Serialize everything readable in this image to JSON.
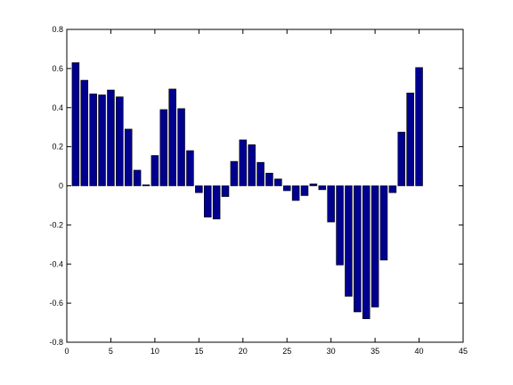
{
  "chart_data": {
    "type": "bar",
    "x": [
      1,
      2,
      3,
      4,
      5,
      6,
      7,
      8,
      9,
      10,
      11,
      12,
      13,
      14,
      15,
      16,
      17,
      18,
      19,
      20,
      21,
      22,
      23,
      24,
      25,
      26,
      27,
      28,
      29,
      30,
      31,
      32,
      33,
      34,
      35,
      36,
      37,
      38,
      39,
      40
    ],
    "values": [
      0.63,
      0.54,
      0.47,
      0.465,
      0.49,
      0.455,
      0.29,
      0.08,
      0.005,
      0.155,
      0.39,
      0.495,
      0.395,
      0.18,
      -0.035,
      -0.16,
      -0.17,
      -0.055,
      0.125,
      0.235,
      0.21,
      0.12,
      0.065,
      0.035,
      -0.025,
      -0.075,
      -0.05,
      0.01,
      -0.02,
      -0.185,
      -0.405,
      -0.565,
      -0.645,
      -0.68,
      -0.62,
      -0.38,
      -0.035,
      0.275,
      0.475,
      0.605
    ],
    "color": "#00008f",
    "xlim": [
      0,
      45
    ],
    "xticks": [
      0,
      5,
      10,
      15,
      20,
      25,
      30,
      35,
      40,
      45
    ],
    "ylim": [
      -0.8,
      0.8
    ],
    "yticks": [
      -0.8,
      -0.6,
      -0.4,
      -0.2,
      0,
      0.2,
      0.4,
      0.6,
      0.8
    ],
    "grid": false
  }
}
